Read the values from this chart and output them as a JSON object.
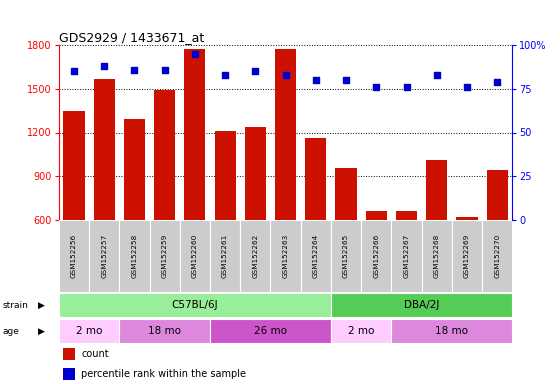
{
  "title": "GDS2929 / 1433671_at",
  "samples": [
    "GSM152256",
    "GSM152257",
    "GSM152258",
    "GSM152259",
    "GSM152260",
    "GSM152261",
    "GSM152262",
    "GSM152263",
    "GSM152264",
    "GSM152265",
    "GSM152266",
    "GSM152267",
    "GSM152268",
    "GSM152269",
    "GSM152270"
  ],
  "counts": [
    1350,
    1570,
    1290,
    1490,
    1770,
    1210,
    1240,
    1770,
    1160,
    960,
    660,
    660,
    1010,
    620,
    940
  ],
  "percentiles": [
    85,
    88,
    86,
    86,
    95,
    83,
    85,
    83,
    80,
    80,
    76,
    76,
    83,
    76,
    79
  ],
  "ylim_left": [
    600,
    1800
  ],
  "ylim_right": [
    0,
    100
  ],
  "yticks_left": [
    600,
    900,
    1200,
    1500,
    1800
  ],
  "yticks_right": [
    0,
    25,
    50,
    75,
    100
  ],
  "bar_color": "#cc1100",
  "dot_color": "#0000cc",
  "strain_groups": [
    {
      "label": "C57BL/6J",
      "start": 0,
      "end": 9,
      "color": "#99ee99"
    },
    {
      "label": "DBA/2J",
      "start": 9,
      "end": 15,
      "color": "#55cc55"
    }
  ],
  "age_groups": [
    {
      "label": "2 mo",
      "start": 0,
      "end": 2,
      "color": "#ffccff"
    },
    {
      "label": "18 mo",
      "start": 2,
      "end": 5,
      "color": "#dd88dd"
    },
    {
      "label": "26 mo",
      "start": 5,
      "end": 9,
      "color": "#cc55cc"
    },
    {
      "label": "2 mo",
      "start": 9,
      "end": 11,
      "color": "#ffccff"
    },
    {
      "label": "18 mo",
      "start": 11,
      "end": 15,
      "color": "#dd88dd"
    }
  ],
  "background_color": "#ffffff",
  "plot_bg": "#ffffff"
}
